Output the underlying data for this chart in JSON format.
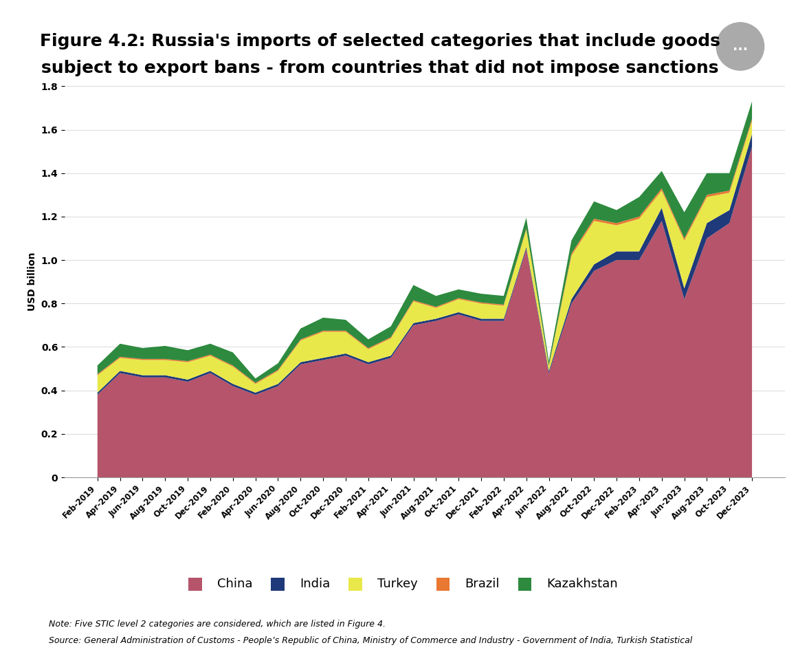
{
  "title_line1": "Figure 4.2: Russia's imports of selected categories that include goods",
  "title_line2": "subject to export bans - from countries that did not impose sanctions",
  "ylabel": "USD billion",
  "ylim": [
    0,
    1.8
  ],
  "yticks": [
    0,
    0.2,
    0.4,
    0.6,
    0.8,
    1.0,
    1.2,
    1.4,
    1.6,
    1.8
  ],
  "colors": {
    "China": "#b5546a",
    "India": "#1f3a7a",
    "Turkey": "#e8e84a",
    "Brazil": "#e87832",
    "Kazakhstan": "#2d8a3e"
  },
  "note": "Note: Five STIC level 2 categories are considered, which are listed in Figure 4.",
  "source": "Source: General Administration of Customs - People’s Republic of China, Ministry of Commerce and Industry - Government of India, Turkish Statistical",
  "x_labels": [
    "Feb-2019",
    "Apr-2019",
    "Jun-2019",
    "Aug-2019",
    "Oct-2019",
    "Dec-2019",
    "Feb-2020",
    "Apr-2020",
    "Jun-2020",
    "Aug-2020",
    "Oct-2020",
    "Dec-2020",
    "Feb-2021",
    "Apr-2021",
    "Jun-2021",
    "Aug-2021",
    "Oct-2021",
    "Dec-2021",
    "Feb-2022",
    "Apr-2022",
    "Jun-2022",
    "Aug-2022",
    "Oct-2022",
    "Dec-2022",
    "Feb-2023",
    "Apr-2023",
    "Jun-2023",
    "Aug-2023",
    "Oct-2023",
    "Dec-2023"
  ],
  "data": {
    "China": [
      0.38,
      0.48,
      0.46,
      0.46,
      0.44,
      0.48,
      0.42,
      0.38,
      0.42,
      0.52,
      0.54,
      0.56,
      0.52,
      0.55,
      0.7,
      0.72,
      0.75,
      0.72,
      0.72,
      1.05,
      0.48,
      0.8,
      0.95,
      1.0,
      1.0,
      1.18,
      0.82,
      1.1,
      1.17,
      1.52
    ],
    "India": [
      0.01,
      0.01,
      0.01,
      0.01,
      0.01,
      0.01,
      0.01,
      0.01,
      0.01,
      0.01,
      0.01,
      0.01,
      0.01,
      0.01,
      0.01,
      0.01,
      0.01,
      0.01,
      0.01,
      0.01,
      0.01,
      0.02,
      0.03,
      0.04,
      0.04,
      0.06,
      0.05,
      0.07,
      0.06,
      0.06
    ],
    "Turkey": [
      0.08,
      0.06,
      0.07,
      0.07,
      0.08,
      0.07,
      0.08,
      0.04,
      0.06,
      0.1,
      0.12,
      0.1,
      0.06,
      0.08,
      0.1,
      0.05,
      0.06,
      0.07,
      0.06,
      0.08,
      0.02,
      0.2,
      0.2,
      0.12,
      0.15,
      0.08,
      0.22,
      0.12,
      0.08,
      0.06
    ],
    "Brazil": [
      0.005,
      0.005,
      0.005,
      0.005,
      0.005,
      0.005,
      0.005,
      0.005,
      0.005,
      0.005,
      0.005,
      0.005,
      0.005,
      0.005,
      0.005,
      0.005,
      0.005,
      0.005,
      0.005,
      0.005,
      0.005,
      0.01,
      0.01,
      0.01,
      0.01,
      0.01,
      0.01,
      0.01,
      0.01,
      0.01
    ],
    "Kazakhstan": [
      0.04,
      0.06,
      0.05,
      0.06,
      0.05,
      0.05,
      0.06,
      0.02,
      0.03,
      0.05,
      0.06,
      0.05,
      0.04,
      0.05,
      0.07,
      0.05,
      0.04,
      0.04,
      0.04,
      0.05,
      0.02,
      0.06,
      0.08,
      0.06,
      0.09,
      0.08,
      0.12,
      0.1,
      0.08,
      0.08
    ]
  },
  "background_color": "#ffffff",
  "title_fontsize": 18,
  "legend_fontsize": 13,
  "axis_fontsize": 11,
  "note_fontsize": 9
}
